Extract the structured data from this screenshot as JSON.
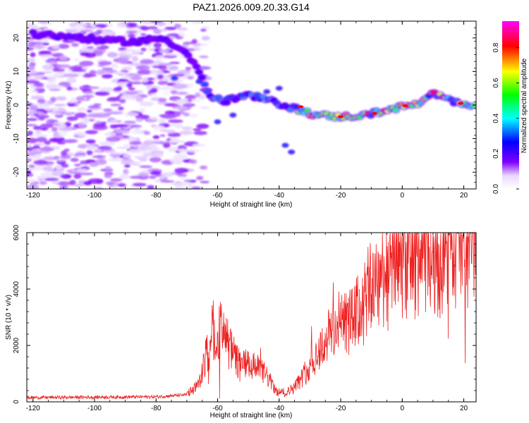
{
  "chart_data": [
    {
      "type": "heatmap",
      "title": "PAZ1.2026.009.20.33.G14",
      "xlabel": "Height of straight line (km)",
      "ylabel": "Frequency (Hz)",
      "xlim": [
        -122,
        24
      ],
      "ylim": [
        -25,
        25
      ],
      "xticks": [
        -120,
        -100,
        -80,
        -60,
        -40,
        -20,
        0,
        20
      ],
      "yticks": [
        -20,
        -10,
        0,
        10,
        20
      ],
      "colorbar": {
        "label": "Normalized spectral amplitude",
        "range": [
          0,
          0.95
        ],
        "ticks": [
          0.0,
          0.2,
          0.4,
          0.6,
          0.8
        ],
        "colors": [
          "#ffffff",
          "#8000ff",
          "#0000ff",
          "#00ffff",
          "#00ff00",
          "#ffff00",
          "#ff0000",
          "#ff00ff"
        ]
      },
      "ridge": {
        "description_points_km_hz": [
          [
            -116,
            21
          ],
          [
            -104,
            20
          ],
          [
            -95,
            19
          ],
          [
            -85,
            19
          ],
          [
            -78,
            20
          ],
          [
            -72,
            17
          ],
          [
            -67,
            12
          ],
          [
            -63,
            3
          ],
          [
            -58,
            1
          ],
          [
            -50,
            3
          ],
          [
            -42,
            1
          ],
          [
            -35,
            -1
          ],
          [
            -28,
            -3
          ],
          [
            -20,
            -3.5
          ],
          [
            -12,
            -3
          ],
          [
            -5,
            -1.5
          ],
          [
            0,
            -0.5
          ],
          [
            6,
            0.5
          ],
          [
            10,
            3.5
          ],
          [
            15,
            1.5
          ],
          [
            20,
            0.5
          ],
          [
            24,
            0
          ]
        ]
      }
    },
    {
      "type": "line",
      "xlabel": "Height of straight line (km)",
      "ylabel": "SNR (10 * v/v)",
      "xlim": [
        -122,
        24
      ],
      "ylim": [
        0,
        6000
      ],
      "xticks": [
        -120,
        -100,
        -80,
        -60,
        -40,
        -20,
        0,
        20
      ],
      "yticks": [
        0,
        2000,
        4000,
        6000
      ],
      "color": "#ee2222",
      "envelope_km_snr": [
        [
          -122,
          150
        ],
        [
          -80,
          180
        ],
        [
          -70,
          250
        ],
        [
          -66,
          600
        ],
        [
          -63,
          1800
        ],
        [
          -60,
          2500
        ],
        [
          -58,
          2300
        ],
        [
          -56,
          1800
        ],
        [
          -53,
          1300
        ],
        [
          -48,
          1200
        ],
        [
          -44,
          900
        ],
        [
          -41,
          350
        ],
        [
          -38,
          300
        ],
        [
          -35,
          500
        ],
        [
          -32,
          900
        ],
        [
          -29,
          1400
        ],
        [
          -26,
          1900
        ],
        [
          -23,
          2400
        ],
        [
          -20,
          2700
        ],
        [
          -17,
          2700
        ],
        [
          -14,
          3100
        ],
        [
          -10,
          3900
        ],
        [
          -6,
          4400
        ],
        [
          -2,
          4900
        ],
        [
          2,
          4800
        ],
        [
          6,
          5000
        ],
        [
          10,
          5000
        ],
        [
          14,
          4900
        ],
        [
          18,
          5300
        ],
        [
          24,
          5600
        ]
      ]
    }
  ]
}
